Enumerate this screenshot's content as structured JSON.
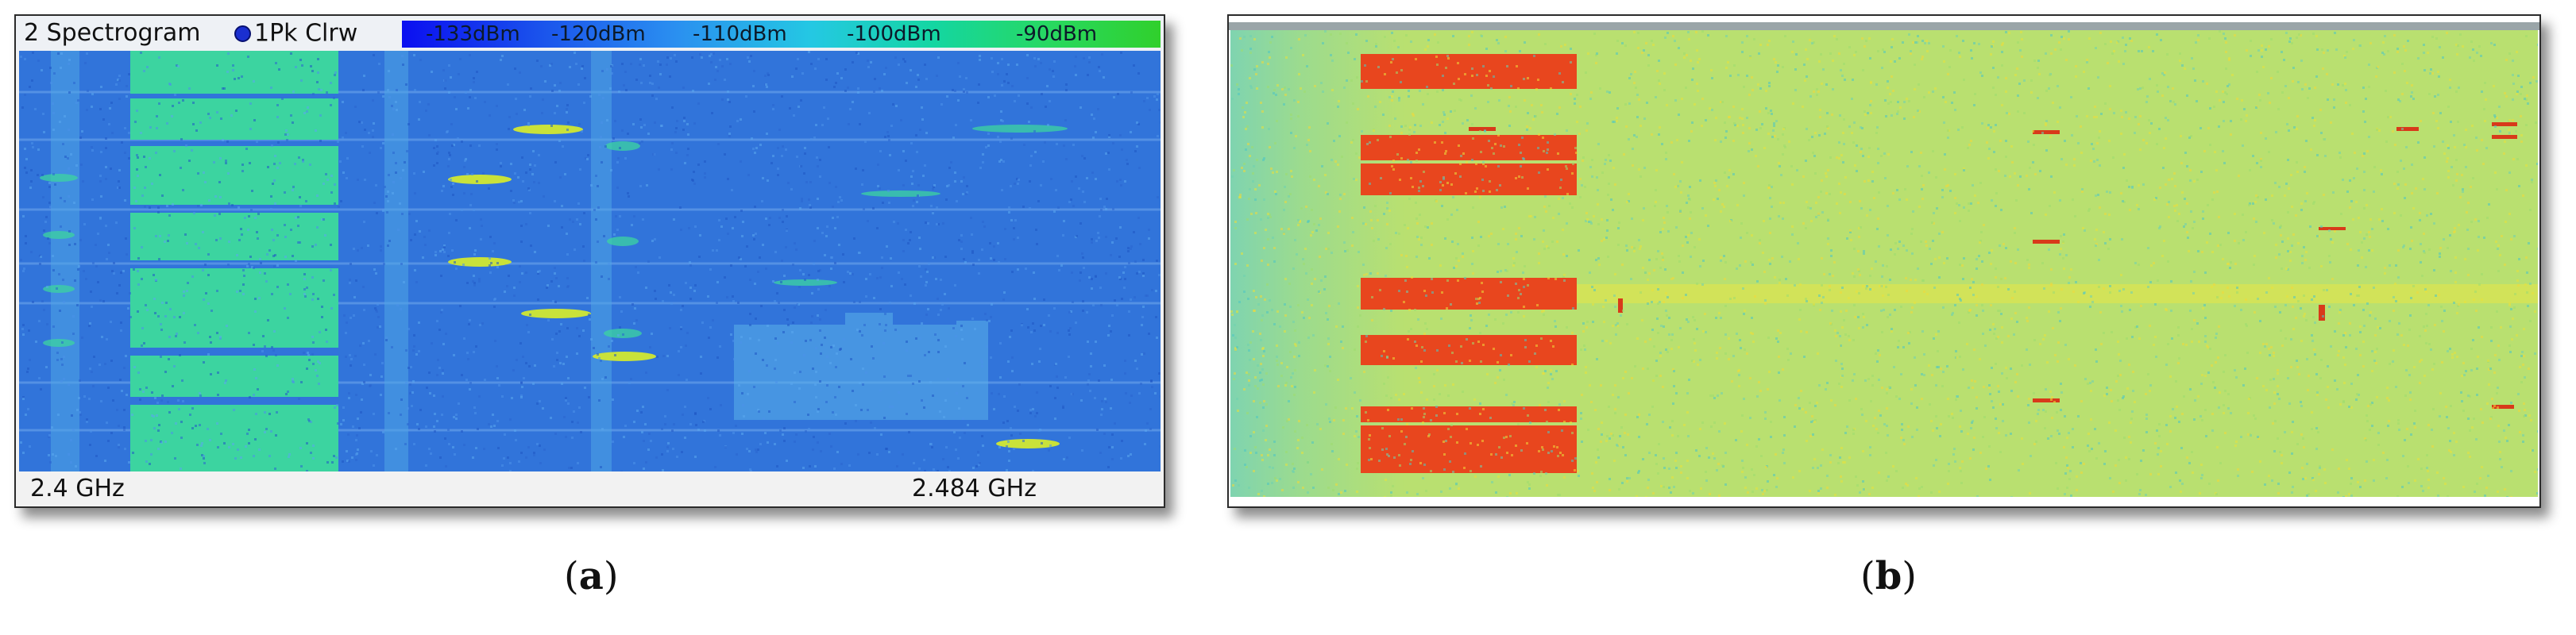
{
  "panel_a": {
    "title": "2 Spectrogram",
    "trace_label": "1Pk Clrw",
    "trace_dot_color": "#1a2fd0",
    "scale_labels": [
      "-133dBm",
      "-120dBm",
      "-110dBm",
      "-100dBm",
      "-90dBm"
    ],
    "scale_colors": [
      "#0b0ff0",
      "#2a8ff0",
      "#24c8e3",
      "#14d6a2",
      "#30d02c"
    ],
    "freq_start": "2.4 GHz",
    "freq_stop": "2.484 GHz",
    "background_color": "#2e6fd6",
    "signal_colors": [
      "#3cd4a0",
      "#c9e23a",
      "#30c8c8"
    ]
  },
  "panel_b": {
    "background_color": "#b9e070",
    "signal_color": "#e8461e",
    "edge_color": "#7fd4b0"
  },
  "captions": {
    "a": {
      "open": "(",
      "letter": "a",
      "close": ")"
    },
    "b": {
      "open": "(",
      "letter": "b",
      "close": ")"
    }
  }
}
